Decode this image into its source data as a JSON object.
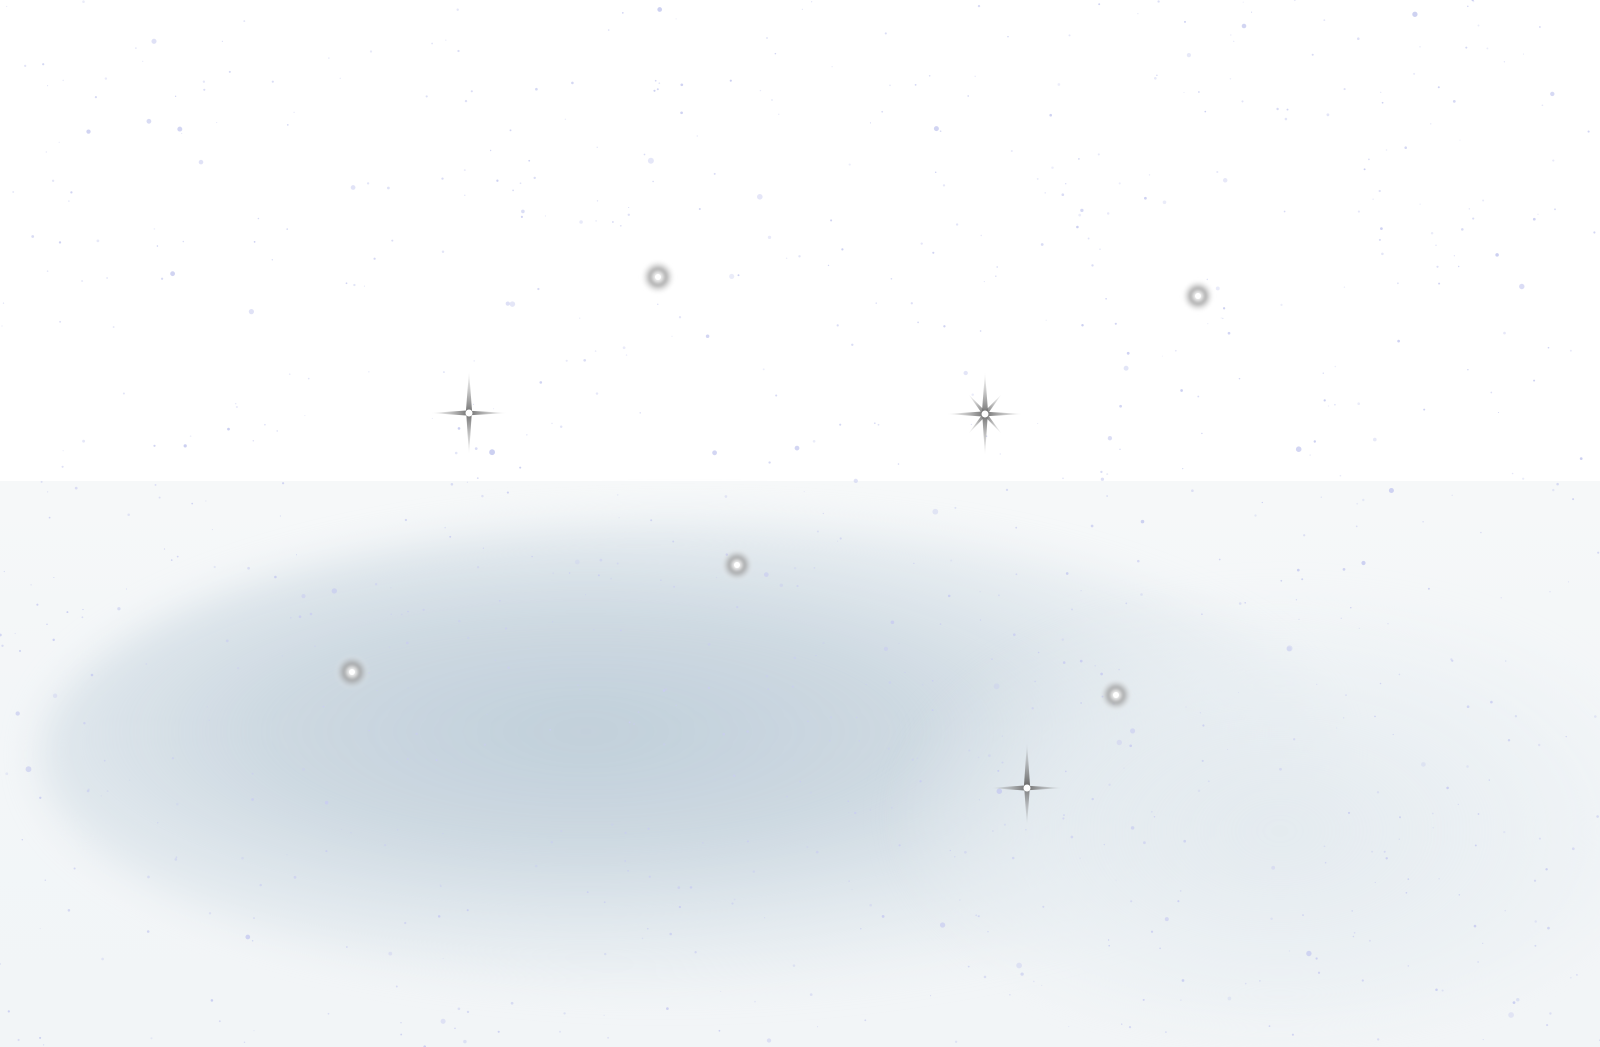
{
  "scene": {
    "colors": {
      "background": "#ffffff",
      "haze": "#c6d3dd",
      "dust": "#c9cdf0",
      "star_core": "#ffffff",
      "star_glow": "#8a8a8a"
    },
    "icons": [
      "orb-icon",
      "sparkle-icon"
    ]
  }
}
